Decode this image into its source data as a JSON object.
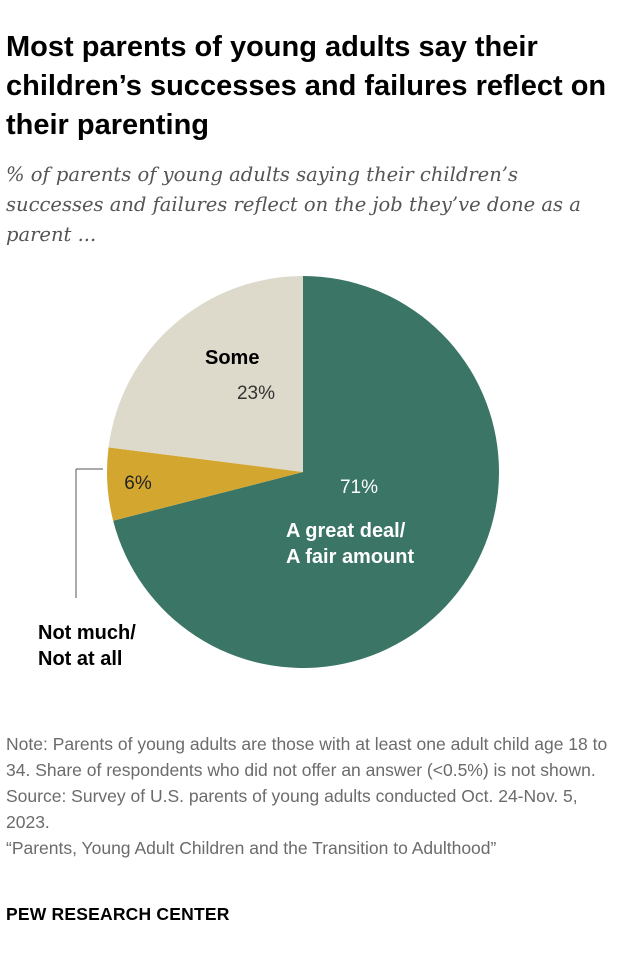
{
  "chart_data": {
    "type": "pie",
    "title": "Most parents of young adults say their children’s successes and failures reflect on their parenting",
    "subtitle": "% of parents of young adults saying their children’s successes and failures reflect on the job they’ve done as a parent ...",
    "slices": [
      {
        "label_lines": [
          "A great deal/",
          "A fair amount"
        ],
        "value": 71,
        "value_label": "71%",
        "color": "#3a7565"
      },
      {
        "label_lines": [
          "Not much/",
          "Not at all"
        ],
        "value": 6,
        "value_label": "6%",
        "color": "#d3a62f"
      },
      {
        "label_lines": [
          "Some"
        ],
        "value": 23,
        "value_label": "23%",
        "color": "#ddd9cb"
      }
    ]
  },
  "notes": [
    "Note: Parents of young adults are those with at least one adult child age 18 to 34. Share of respondents who did not offer an answer (<0.5%) is not shown.",
    "Source: Survey of U.S. parents of young adults conducted Oct. 24-Nov. 5, 2023.",
    "“Parents, Young Adult Children and the Transition to Adulthood”"
  ],
  "brand": "PEW RESEARCH CENTER"
}
